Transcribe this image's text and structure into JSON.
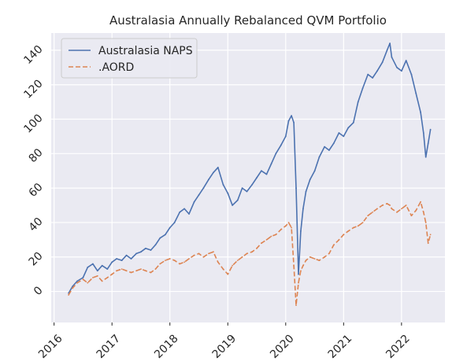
{
  "chart_data": {
    "type": "line",
    "title": "Australasia Annually Rebalanced QVM Portfolio",
    "xlabel": "",
    "ylabel": "",
    "x_ticks": [
      "2016",
      "2017",
      "2018",
      "2019",
      "2020",
      "2021",
      "2022"
    ],
    "y_ticks": [
      0,
      20,
      40,
      60,
      80,
      100,
      120,
      140
    ],
    "xlim": [
      2015.95,
      2022.75
    ],
    "ylim": [
      -18,
      150
    ],
    "grid": true,
    "legend_position": "upper-left",
    "series": [
      {
        "name": "Australasia NAPS",
        "color": "#4c72b0",
        "dash": "solid",
        "x": [
          2016.25,
          2016.32,
          2016.4,
          2016.5,
          2016.58,
          2016.67,
          2016.75,
          2016.83,
          2016.92,
          2017.0,
          2017.08,
          2017.17,
          2017.25,
          2017.33,
          2017.42,
          2017.5,
          2017.58,
          2017.67,
          2017.75,
          2017.83,
          2017.92,
          2018.0,
          2018.08,
          2018.17,
          2018.25,
          2018.33,
          2018.42,
          2018.5,
          2018.58,
          2018.67,
          2018.75,
          2018.83,
          2018.92,
          2019.0,
          2019.08,
          2019.17,
          2019.25,
          2019.33,
          2019.42,
          2019.5,
          2019.58,
          2019.67,
          2019.75,
          2019.83,
          2019.92,
          2020.0,
          2020.05,
          2020.1,
          2020.14,
          2020.18,
          2020.22,
          2020.26,
          2020.3,
          2020.35,
          2020.42,
          2020.5,
          2020.58,
          2020.67,
          2020.75,
          2020.83,
          2020.92,
          2021.0,
          2021.08,
          2021.17,
          2021.25,
          2021.33,
          2021.42,
          2021.5,
          2021.58,
          2021.67,
          2021.75,
          2021.8,
          2021.83,
          2021.92,
          2022.0,
          2022.08,
          2022.17,
          2022.25,
          2022.33,
          2022.38,
          2022.42,
          2022.46,
          2022.5
        ],
        "y": [
          -1,
          3,
          6,
          8,
          14,
          16,
          12,
          15,
          13,
          17,
          19,
          18,
          21,
          19,
          22,
          23,
          25,
          24,
          27,
          31,
          33,
          37,
          40,
          46,
          48,
          45,
          52,
          56,
          60,
          65,
          69,
          72,
          62,
          57,
          50,
          53,
          60,
          58,
          62,
          66,
          70,
          68,
          74,
          80,
          85,
          90,
          99,
          102,
          98,
          60,
          10,
          35,
          48,
          58,
          65,
          70,
          78,
          84,
          82,
          86,
          92,
          90,
          95,
          98,
          110,
          118,
          126,
          124,
          128,
          133,
          140,
          144,
          136,
          130,
          128,
          134,
          126,
          115,
          104,
          92,
          78,
          86,
          94
        ]
      },
      {
        "name": ".AORD",
        "color": "#dd8452",
        "dash": "dashed",
        "x": [
          2016.25,
          2016.32,
          2016.4,
          2016.5,
          2016.58,
          2016.67,
          2016.75,
          2016.83,
          2016.92,
          2017.0,
          2017.08,
          2017.17,
          2017.25,
          2017.33,
          2017.42,
          2017.5,
          2017.58,
          2017.67,
          2017.75,
          2017.83,
          2017.92,
          2018.0,
          2018.08,
          2018.17,
          2018.25,
          2018.33,
          2018.42,
          2018.5,
          2018.58,
          2018.67,
          2018.75,
          2018.83,
          2018.92,
          2019.0,
          2019.08,
          2019.17,
          2019.25,
          2019.33,
          2019.42,
          2019.5,
          2019.58,
          2019.67,
          2019.75,
          2019.83,
          2019.92,
          2020.0,
          2020.05,
          2020.1,
          2020.14,
          2020.18,
          2020.22,
          2020.26,
          2020.3,
          2020.35,
          2020.42,
          2020.5,
          2020.58,
          2020.67,
          2020.75,
          2020.83,
          2020.92,
          2021.0,
          2021.08,
          2021.17,
          2021.25,
          2021.33,
          2021.42,
          2021.5,
          2021.58,
          2021.67,
          2021.75,
          2021.8,
          2021.83,
          2021.92,
          2022.0,
          2022.08,
          2022.17,
          2022.25,
          2022.33,
          2022.38,
          2022.42,
          2022.46,
          2022.5
        ],
        "y": [
          -2,
          2,
          5,
          7,
          5,
          8,
          9,
          6,
          8,
          10,
          12,
          13,
          12,
          11,
          12,
          13,
          12,
          11,
          13,
          16,
          18,
          19,
          18,
          16,
          17,
          19,
          21,
          22,
          20,
          22,
          23,
          17,
          13,
          10,
          15,
          18,
          20,
          22,
          23,
          25,
          28,
          30,
          32,
          33,
          36,
          38,
          40,
          37,
          15,
          -8,
          5,
          12,
          15,
          18,
          20,
          19,
          18,
          20,
          22,
          27,
          30,
          33,
          35,
          37,
          38,
          40,
          44,
          46,
          48,
          50,
          51,
          50,
          48,
          46,
          48,
          50,
          44,
          47,
          52,
          46,
          40,
          28,
          33
        ]
      }
    ]
  }
}
